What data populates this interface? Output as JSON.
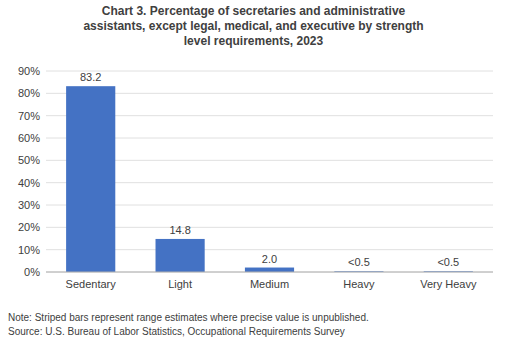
{
  "chart_data": {
    "type": "bar",
    "title": "Chart 3. Percentage of secretaries and administrative\nassistants, except legal, medical, and executive by strength\nlevel requirements, 2023",
    "categories": [
      "Sedentary",
      "Light",
      "Medium",
      "Heavy",
      "Very Heavy"
    ],
    "values": [
      83.2,
      14.8,
      2.0,
      0.3,
      0.3
    ],
    "value_labels": [
      "83.2",
      "14.8",
      "2.0",
      "<0.5",
      "<0.5"
    ],
    "data_labels": true,
    "color": "#4472C4",
    "ylim": [
      0,
      90
    ],
    "yticks": [
      {
        "value": 0,
        "label": "0%"
      },
      {
        "value": 10,
        "label": "10%"
      },
      {
        "value": 20,
        "label": "20%"
      },
      {
        "value": 30,
        "label": "30%"
      },
      {
        "value": 40,
        "label": "40%"
      },
      {
        "value": 50,
        "label": "50%"
      },
      {
        "value": 60,
        "label": "60%"
      },
      {
        "value": 70,
        "label": "70%"
      },
      {
        "value": 80,
        "label": "80%"
      },
      {
        "value": 90,
        "label": "90%"
      }
    ],
    "grid": true,
    "annotations": [
      "Note: Striped bars represent range estimates where precise value is unpublished.",
      "Source: U.S. Bureau of Labor Statistics, Occupational Requirements Survey"
    ]
  }
}
